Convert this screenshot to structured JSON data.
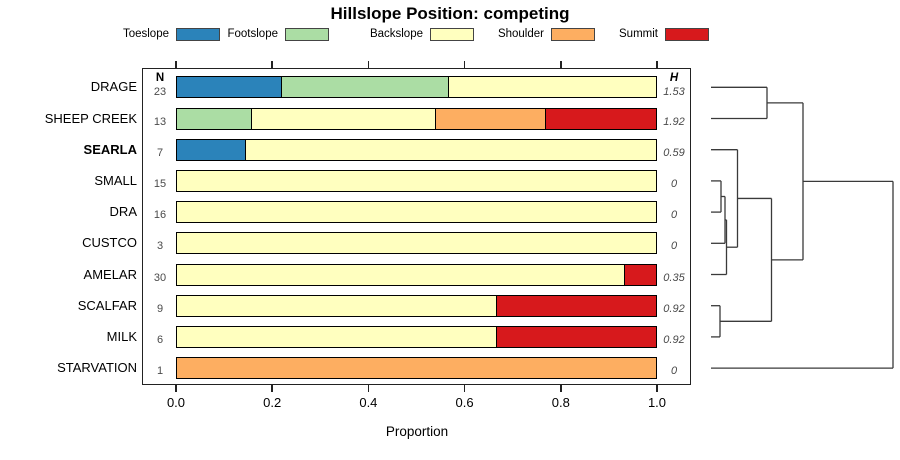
{
  "chart_data": {
    "type": "bar",
    "variant": "horizontal-stacked-proportion",
    "title": "Hillslope Position: competing",
    "xlabel": "Proportion",
    "xlim": [
      0.0,
      1.0
    ],
    "xticks": [
      "0.0",
      "0.2",
      "0.4",
      "0.6",
      "0.8",
      "1.0"
    ],
    "grid": false,
    "legend_position": "top",
    "legend": [
      {
        "label": "Toeslope",
        "color": "#2B83BA"
      },
      {
        "label": "Footslope",
        "color": "#ABDDA4"
      },
      {
        "label": "Backslope",
        "color": "#FFFFBF"
      },
      {
        "label": "Shoulder",
        "color": "#FDAE61"
      },
      {
        "label": "Summit",
        "color": "#D7191C"
      }
    ],
    "n_header": "N",
    "h_header": "H",
    "rows": [
      {
        "label": "DRAGE",
        "bold": false,
        "n": "23",
        "h": "1.53",
        "segments": [
          {
            "cat": "Toeslope",
            "value": 0.217
          },
          {
            "cat": "Footslope",
            "value": 0.348
          },
          {
            "cat": "Backslope",
            "value": 0.435
          }
        ]
      },
      {
        "label": "SHEEP CREEK",
        "bold": false,
        "n": "13",
        "h": "1.92",
        "segments": [
          {
            "cat": "Footslope",
            "value": 0.154
          },
          {
            "cat": "Backslope",
            "value": 0.384
          },
          {
            "cat": "Shoulder",
            "value": 0.231
          },
          {
            "cat": "Summit",
            "value": 0.231
          }
        ]
      },
      {
        "label": "SEARLA",
        "bold": true,
        "n": "7",
        "h": "0.59",
        "segments": [
          {
            "cat": "Toeslope",
            "value": 0.143
          },
          {
            "cat": "Backslope",
            "value": 0.857
          }
        ]
      },
      {
        "label": "SMALL",
        "bold": false,
        "n": "15",
        "h": "0",
        "segments": [
          {
            "cat": "Backslope",
            "value": 1.0
          }
        ]
      },
      {
        "label": "DRA",
        "bold": false,
        "n": "16",
        "h": "0",
        "segments": [
          {
            "cat": "Backslope",
            "value": 1.0
          }
        ]
      },
      {
        "label": "CUSTCO",
        "bold": false,
        "n": "3",
        "h": "0",
        "segments": [
          {
            "cat": "Backslope",
            "value": 1.0
          }
        ]
      },
      {
        "label": "AMELAR",
        "bold": false,
        "n": "30",
        "h": "0.35",
        "segments": [
          {
            "cat": "Backslope",
            "value": 0.933
          },
          {
            "cat": "Summit",
            "value": 0.067
          }
        ]
      },
      {
        "label": "SCALFAR",
        "bold": false,
        "n": "9",
        "h": "0.92",
        "segments": [
          {
            "cat": "Backslope",
            "value": 0.667
          },
          {
            "cat": "Summit",
            "value": 0.333
          }
        ]
      },
      {
        "label": "MILK",
        "bold": false,
        "n": "6",
        "h": "0.92",
        "segments": [
          {
            "cat": "Backslope",
            "value": 0.667
          },
          {
            "cat": "Summit",
            "value": 0.333
          }
        ]
      },
      {
        "label": "STARVATION",
        "bold": false,
        "n": "1",
        "h": "0",
        "segments": [
          {
            "cat": "Shoulder",
            "value": 1.0
          }
        ]
      }
    ],
    "dendrogram": {
      "side": "right",
      "leaf_order": [
        "DRAGE",
        "SHEEP CREEK",
        "SEARLA",
        "SMALL",
        "DRA",
        "CUSTCO",
        "AMELAR",
        "SCALFAR",
        "MILK",
        "STARVATION"
      ],
      "merges": [
        {
          "a": "SMALL",
          "b": "DRA",
          "height": 0.055
        },
        {
          "a": "SMALL+DRA",
          "b": "CUSTCO",
          "height": 0.077
        },
        {
          "a": "SMALL+DRA+CUSTCO",
          "b": "AMELAR",
          "height": 0.085
        },
        {
          "a": "SEARLA",
          "b": "SMALL+DRA+CUSTCO+AMELAR",
          "height": 0.146
        },
        {
          "a": "SCALFAR",
          "b": "MILK",
          "height": 0.049
        },
        {
          "a": "SEARLA-cluster",
          "b": "SCALFAR+MILK",
          "height": 0.332
        },
        {
          "a": "DRAGE",
          "b": "SHEEP CREEK",
          "height": 0.308
        },
        {
          "a": "DRAGE+SHEEP CREEK",
          "b": "middle-cluster",
          "height": 0.505
        },
        {
          "a": "all-above",
          "b": "STARVATION",
          "height": 1.0
        }
      ],
      "segment_units": "x: 0-182 height px from leaf baseline; y: leaf row index 0-9",
      "segments": [
        [
          0,
          0,
          56,
          0
        ],
        [
          0,
          1,
          56,
          1
        ],
        [
          0,
          2,
          26.5,
          2
        ],
        [
          0,
          3,
          10,
          3
        ],
        [
          0,
          4,
          10,
          4
        ],
        [
          0,
          5,
          14,
          5
        ],
        [
          0,
          6,
          15.5,
          6
        ],
        [
          0,
          7,
          9,
          7
        ],
        [
          0,
          8,
          9,
          8
        ],
        [
          0,
          9,
          182,
          9
        ],
        [
          10,
          3,
          10,
          4
        ],
        [
          10,
          3.5,
          14,
          3.5
        ],
        [
          14,
          3.5,
          14,
          5
        ],
        [
          14,
          4.25,
          15.5,
          4.25
        ],
        [
          15.5,
          4.25,
          15.5,
          6
        ],
        [
          15.5,
          5.125,
          26.5,
          5.125
        ],
        [
          26.5,
          2,
          26.5,
          5.125
        ],
        [
          9,
          7,
          9,
          8
        ],
        [
          26.5,
          3.5625,
          60.5,
          3.5625
        ],
        [
          9,
          7.5,
          60.5,
          7.5
        ],
        [
          60.5,
          3.5625,
          60.5,
          7.5
        ],
        [
          56,
          0,
          56,
          1
        ],
        [
          56,
          0.5,
          92,
          0.5
        ],
        [
          60.5,
          5.53125,
          92,
          5.53125
        ],
        [
          92,
          0.5,
          92,
          5.53125
        ],
        [
          92,
          3.015625,
          182,
          3.015625
        ],
        [
          182,
          3.015625,
          182,
          9
        ]
      ]
    }
  }
}
